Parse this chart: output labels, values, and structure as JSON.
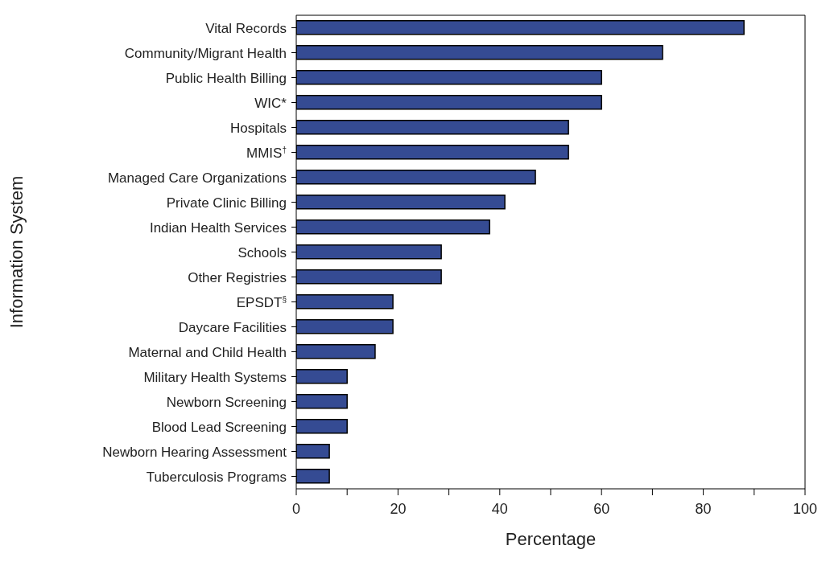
{
  "chart_data": {
    "type": "bar",
    "orientation": "horizontal",
    "xlabel": "Percentage",
    "ylabel": "Information System",
    "categories": [
      "Vital Records",
      "Community/Migrant Health",
      "Public Health Billing",
      "WIC*",
      "Hospitals",
      "MMIS$^{†}$",
      "Managed Care Organizations",
      "Private Clinic Billing",
      "Indian Health Services",
      "Schools",
      "Other Registries",
      "EPSDT$^{§}$",
      "Daycare Facilities",
      "Maternal and Child Health",
      "Military Health Systems",
      "Newborn Screening",
      "Blood Lead Screening",
      "Newborn Hearing Assessment",
      "Tuberculosis Programs"
    ],
    "values": [
      88,
      72,
      60,
      60,
      53.5,
      53.5,
      47,
      41,
      38,
      28.5,
      28.5,
      19,
      19,
      15.5,
      10,
      10,
      10,
      6.5,
      6.5
    ],
    "color": "#354b93",
    "xlim": [
      0,
      100
    ],
    "xticks": [
      0,
      {
        "value": 10,
        "label": null
      },
      20,
      {
        "value": 30,
        "label": null
      },
      40,
      {
        "value": 50,
        "label": null
      },
      60,
      {
        "value": 70,
        "label": null
      },
      80,
      {
        "value": 90,
        "label": null
      },
      100
    ],
    "grid": false,
    "legend": false
  }
}
